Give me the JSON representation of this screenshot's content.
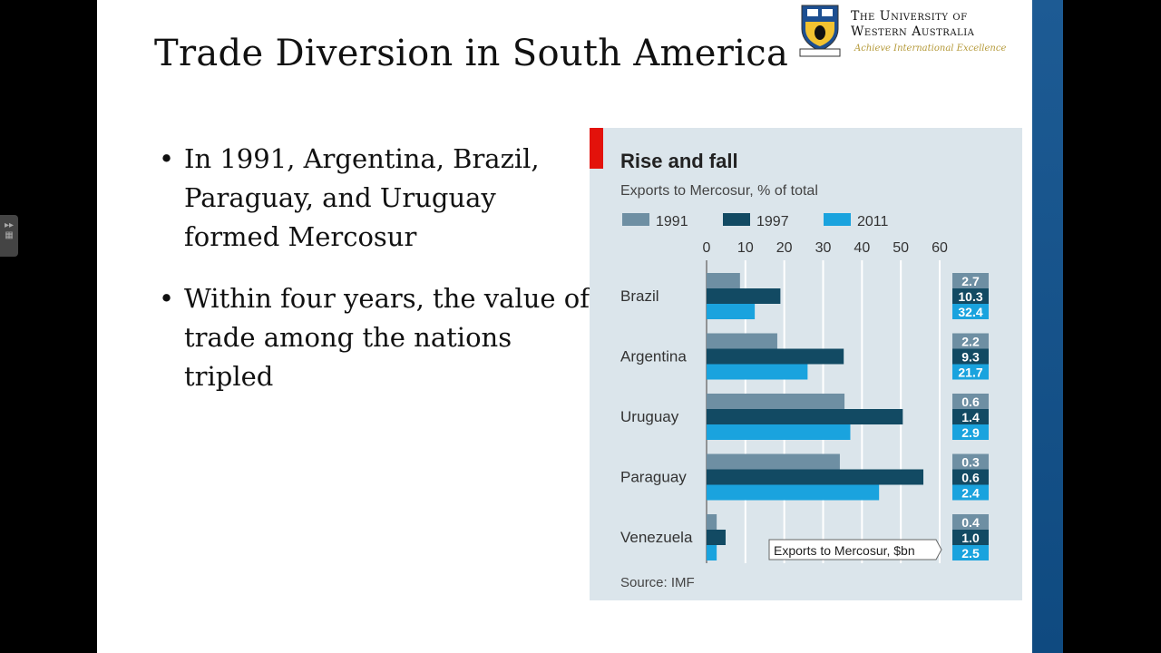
{
  "slide": {
    "title": "Trade Diversion in South America",
    "bullets": [
      "In 1991, Argentina, Brazil, Paraguay, and Uruguay formed Mercosur",
      "Within four years, the value of trade among the nations tripled"
    ],
    "logo": {
      "line1": "The University of",
      "line2": "Western Australia",
      "motto": "Achieve International Excellence"
    }
  },
  "colors": {
    "c1991": "#6e8fa3",
    "c1997": "#124a63",
    "c2011": "#1aa3de",
    "accent": "#e3120b",
    "panel": "#dbe5eb"
  },
  "chart_data": {
    "type": "bar",
    "orientation": "horizontal",
    "title": "Rise and fall",
    "subtitle": "Exports to Mercosur, % of total",
    "categories": [
      "Brazil",
      "Argentina",
      "Uruguay",
      "Paraguay",
      "Venezuela"
    ],
    "series": [
      {
        "name": "1991",
        "values": [
          8.6,
          18.2,
          35.5,
          34.3,
          2.6
        ]
      },
      {
        "name": "1997",
        "values": [
          19,
          35.3,
          50.5,
          55.8,
          4.9
        ]
      },
      {
        "name": "2011",
        "values": [
          12.4,
          26,
          37,
          44.4,
          2.6
        ]
      }
    ],
    "xlim": [
      0,
      60
    ],
    "xticks": [
      "0",
      "10",
      "20",
      "30",
      "40",
      "50",
      "60"
    ],
    "grid": true,
    "legend": "top-left",
    "side_table_label": "Exports to Mercosur, $bn",
    "side_table": [
      [
        "2.7",
        "10.3",
        "32.4"
      ],
      [
        "2.2",
        "9.3",
        "21.7"
      ],
      [
        "0.6",
        "1.4",
        "2.9"
      ],
      [
        "0.3",
        "0.6",
        "2.4"
      ],
      [
        "0.4",
        "1.0",
        "2.5"
      ]
    ],
    "source": "Source: IMF"
  }
}
